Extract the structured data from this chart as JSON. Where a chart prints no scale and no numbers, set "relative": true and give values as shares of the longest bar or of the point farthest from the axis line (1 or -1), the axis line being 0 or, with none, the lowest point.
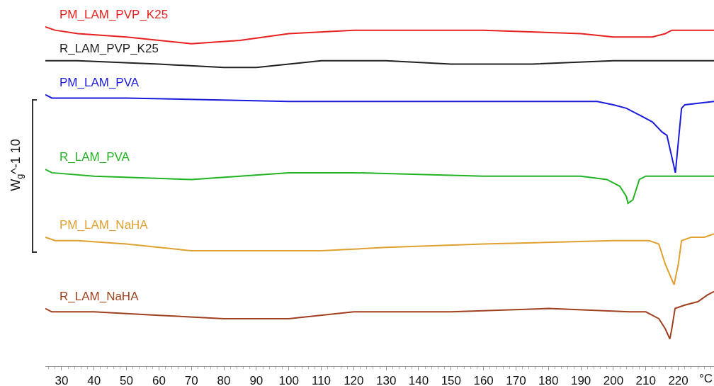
{
  "chart_data": {
    "type": "line",
    "relative": true,
    "xlabel": "°C",
    "ylabel": "W$_{g}$^-1 10",
    "xlim": [
      25,
      231
    ],
    "xticks": [
      30,
      40,
      50,
      60,
      70,
      80,
      90,
      100,
      110,
      120,
      130,
      140,
      150,
      160,
      170,
      180,
      190,
      200,
      210,
      220
    ],
    "grid": false,
    "legend": false,
    "marker": "none",
    "line_style": "solid",
    "series": [
      {
        "name": "PM_LAM_PVP_K25",
        "color": "#e82020",
        "x": [
          25,
          28,
          35,
          50,
          70,
          85,
          100,
          120,
          160,
          190,
          200,
          205,
          212,
          216,
          218,
          231
        ],
        "values": [
          1.0,
          0.99,
          0.98,
          0.97,
          0.95,
          0.96,
          0.98,
          0.99,
          0.99,
          0.98,
          0.97,
          0.97,
          0.97,
          0.98,
          0.99,
          0.99
        ]
      },
      {
        "name": "R_LAM_PVP_K25",
        "color": "#222222",
        "x": [
          25,
          27,
          35,
          60,
          80,
          90,
          110,
          130,
          150,
          160,
          175,
          200,
          231
        ],
        "values": [
          0.9,
          0.9,
          0.9,
          0.89,
          0.88,
          0.88,
          0.9,
          0.9,
          0.89,
          0.89,
          0.89,
          0.9,
          0.9
        ]
      },
      {
        "name": "PM_LAM_PVA",
        "color": "#1a1adc",
        "x": [
          25,
          27,
          50,
          100,
          150,
          195,
          200,
          204,
          208,
          212,
          215,
          216.5,
          219.1,
          220,
          221,
          222,
          231
        ],
        "values": [
          0.8,
          0.79,
          0.79,
          0.78,
          0.78,
          0.78,
          0.77,
          0.76,
          0.74,
          0.72,
          0.69,
          0.68,
          0.57,
          0.66,
          0.76,
          0.77,
          0.78
        ]
      },
      {
        "name": "R_LAM_PVA",
        "color": "#22b322",
        "x": [
          25,
          27,
          40,
          70,
          100,
          120,
          160,
          190,
          198,
          202,
          204,
          204.5,
          206,
          208,
          210,
          231
        ],
        "values": [
          0.58,
          0.57,
          0.56,
          0.55,
          0.57,
          0.57,
          0.56,
          0.56,
          0.55,
          0.53,
          0.5,
          0.48,
          0.49,
          0.55,
          0.56,
          0.56
        ]
      },
      {
        "name": "PM_LAM_NaHA",
        "color": "#e0a030",
        "x": [
          25,
          28,
          35,
          50,
          70,
          80,
          90,
          110,
          130,
          160,
          200,
          211,
          214,
          216,
          218.7,
          220,
          221,
          224,
          228,
          231
        ],
        "values": [
          0.38,
          0.37,
          0.37,
          0.36,
          0.34,
          0.34,
          0.34,
          0.34,
          0.35,
          0.36,
          0.37,
          0.37,
          0.36,
          0.3,
          0.24,
          0.3,
          0.37,
          0.38,
          0.38,
          0.39
        ]
      },
      {
        "name": "R_LAM_NaHA",
        "color": "#a0401e",
        "x": [
          25,
          27,
          40,
          60,
          80,
          100,
          120,
          150,
          180,
          205,
          210,
          212,
          214,
          216,
          217.4,
          218,
          219,
          222,
          226,
          229,
          231
        ],
        "values": [
          0.17,
          0.16,
          0.16,
          0.15,
          0.14,
          0.14,
          0.16,
          0.16,
          0.17,
          0.16,
          0.16,
          0.15,
          0.14,
          0.11,
          0.08,
          0.11,
          0.17,
          0.18,
          0.19,
          0.21,
          0.22
        ]
      }
    ]
  }
}
